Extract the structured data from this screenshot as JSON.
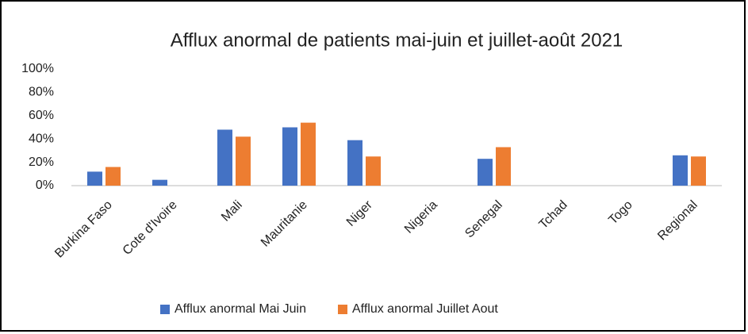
{
  "chart_data": {
    "type": "bar",
    "title": "Afflux anormal de patients mai-juin et juillet-août 2021",
    "categories": [
      "Burkina Faso",
      "Cote d'Ivoire",
      "Mali",
      "Mauritanie",
      "Niger",
      "Nigeria",
      "Senegal",
      "Tchad",
      "Togo",
      "Regional"
    ],
    "series": [
      {
        "name": "Afflux anormal Mai Juin",
        "color": "#4472c4",
        "values": [
          12,
          5,
          48,
          50,
          39,
          0,
          23,
          0,
          0,
          26
        ]
      },
      {
        "name": "Afflux anormal Juillet Aout",
        "color": "#ed7d31",
        "values": [
          16,
          0,
          42,
          54,
          25,
          0,
          33,
          0,
          0,
          25
        ]
      }
    ],
    "ylim": [
      0,
      100
    ],
    "yticks": [
      {
        "value": 0,
        "label": "0%"
      },
      {
        "value": 20,
        "label": "20%"
      },
      {
        "value": 40,
        "label": "40%"
      },
      {
        "value": 60,
        "label": "60%"
      },
      {
        "value": 80,
        "label": "80%"
      },
      {
        "value": 100,
        "label": "100%"
      }
    ],
    "legend": "bottom"
  }
}
